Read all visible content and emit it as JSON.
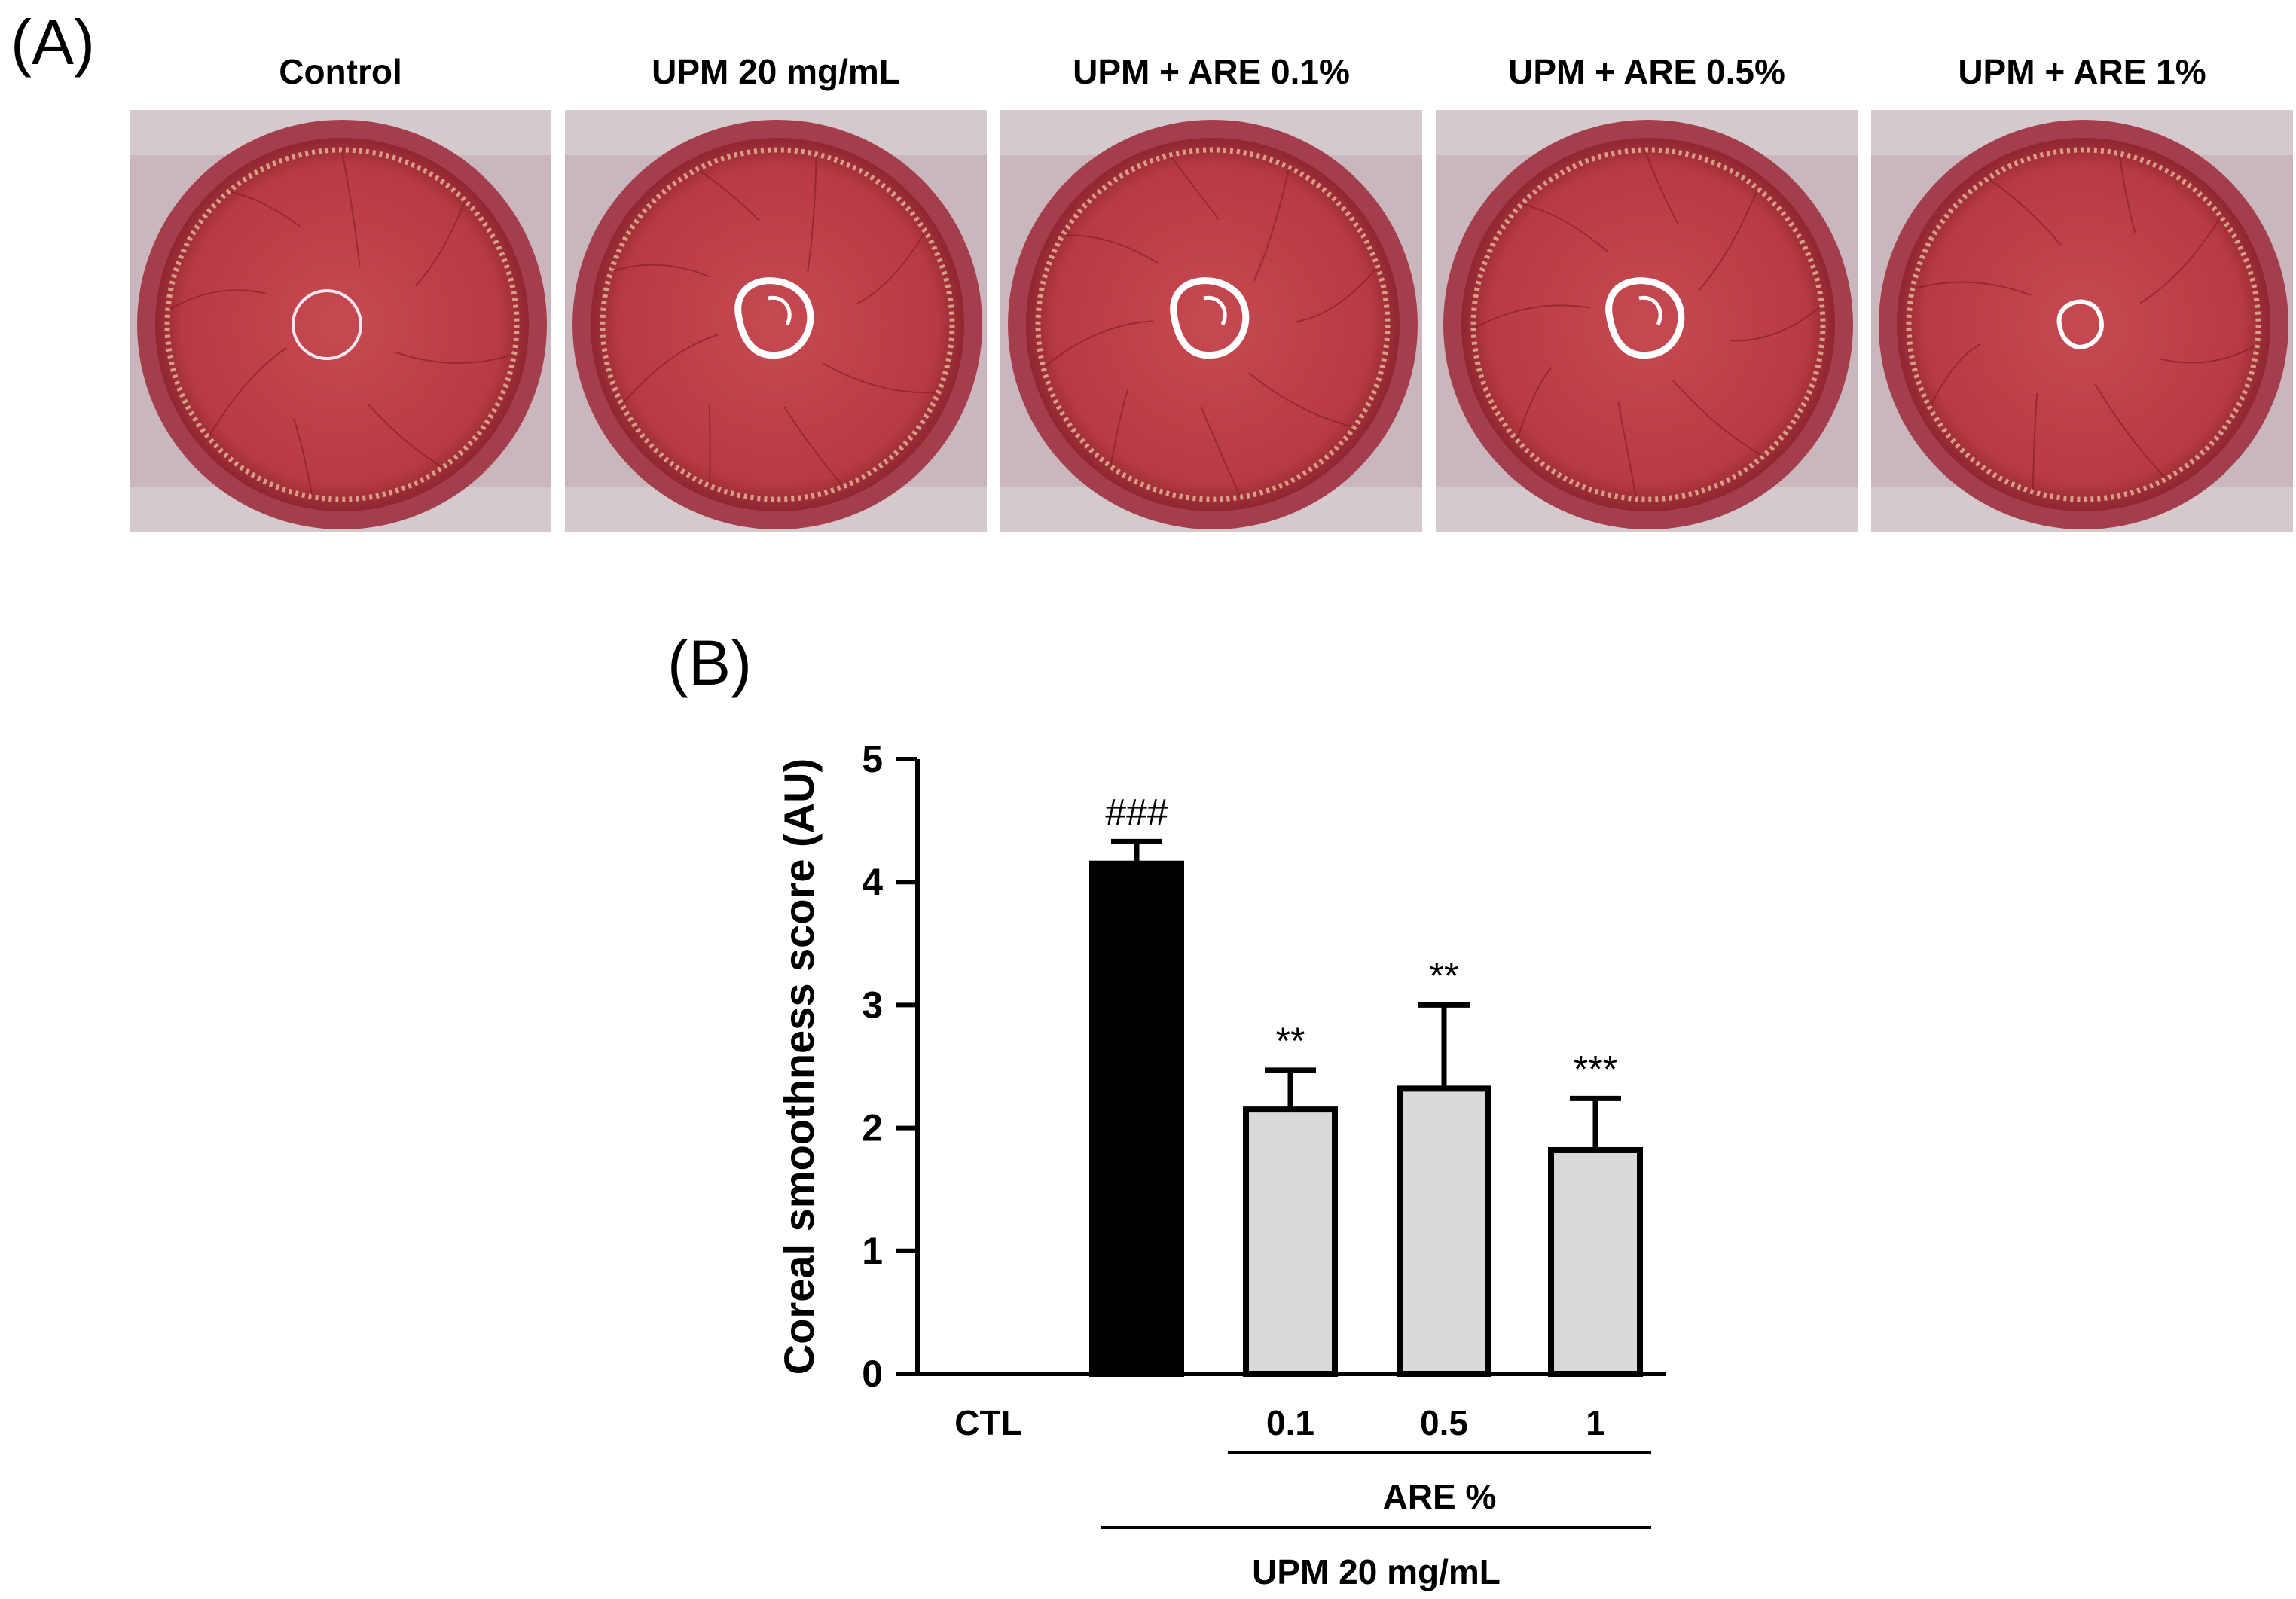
{
  "panel_a": {
    "label": "(A)",
    "photos": [
      {
        "title": "Control"
      },
      {
        "title": "UPM 20 mg/mL"
      },
      {
        "title": "UPM + ARE 0.1%"
      },
      {
        "title": "UPM + ARE 0.5%"
      },
      {
        "title": "UPM + ARE 1%"
      }
    ]
  },
  "panel_b": {
    "label": "(B)"
  },
  "colors": {
    "bar_black": "#000000",
    "bar_gray": "#d9d9d9",
    "cornea_red": "#b83a44",
    "limbus": "#e9c6a0"
  },
  "chart_data": {
    "type": "bar",
    "title": "",
    "ylabel": "Coreal smoothness score (AU)",
    "ylim": [
      0,
      5
    ],
    "yticks": [
      "0",
      "1",
      "2",
      "3",
      "4",
      "5"
    ],
    "categories": [
      "CTL",
      "",
      "0.1",
      "0.5",
      "1"
    ],
    "values": [
      0,
      4.15,
      2.15,
      2.32,
      1.82
    ],
    "errors": [
      0,
      0.18,
      0.32,
      0.68,
      0.42
    ],
    "bar_colors": [
      "#000000",
      "#000000",
      "#d9d9d9",
      "#d9d9d9",
      "#d9d9d9"
    ],
    "annotations": [
      "",
      "###",
      "**",
      "**",
      "***"
    ],
    "group_labels": {
      "are": "ARE %",
      "upm": "UPM 20 mg/mL"
    }
  }
}
